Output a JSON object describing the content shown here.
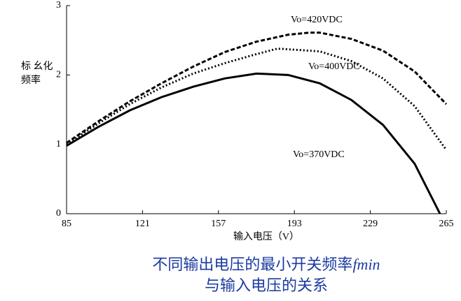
{
  "chart_data": {
    "type": "line",
    "y_label_lines": [
      "标 幺化",
      "频率"
    ],
    "x_label": "输入电压（V）",
    "caption": [
      [
        "不同输出电压的最小开关频率",
        "fmin"
      ],
      [
        "与输入电压的关系"
      ]
    ],
    "annotations": [
      "Vo=420VDC",
      "Vo=400VDC",
      "Vo=370VDC"
    ],
    "xlim": [
      85,
      265
    ],
    "xticks": [
      85,
      121,
      157,
      193,
      229,
      265
    ],
    "ylim": [
      0,
      3
    ],
    "yticks": [
      0,
      1,
      2,
      3
    ],
    "series": [
      {
        "name": "Vo=420VDC",
        "color": "#000000",
        "style": "dashed",
        "x": [
          85,
          100,
          115,
          130,
          145,
          160,
          175,
          190,
          200,
          205,
          220,
          235,
          250,
          265
        ],
        "values": [
          1.02,
          1.33,
          1.62,
          1.88,
          2.12,
          2.33,
          2.48,
          2.58,
          2.61,
          2.61,
          2.52,
          2.35,
          2.05,
          1.58
        ]
      },
      {
        "name": "Vo=400VDC",
        "color": "#000000",
        "style": "dotted",
        "x": [
          85,
          100,
          115,
          130,
          145,
          160,
          175,
          185,
          190,
          205,
          220,
          235,
          250,
          265
        ],
        "values": [
          1.0,
          1.3,
          1.58,
          1.82,
          2.02,
          2.17,
          2.3,
          2.38,
          2.37,
          2.34,
          2.2,
          1.95,
          1.55,
          0.92
        ]
      },
      {
        "name": "Vo=370VDC",
        "color": "#000000",
        "style": "solid",
        "x": [
          85,
          100,
          115,
          130,
          145,
          160,
          175,
          190,
          205,
          220,
          235,
          250,
          262
        ],
        "values": [
          0.98,
          1.25,
          1.49,
          1.68,
          1.83,
          1.95,
          2.02,
          2.0,
          1.88,
          1.64,
          1.28,
          0.72,
          0.0
        ]
      }
    ]
  }
}
